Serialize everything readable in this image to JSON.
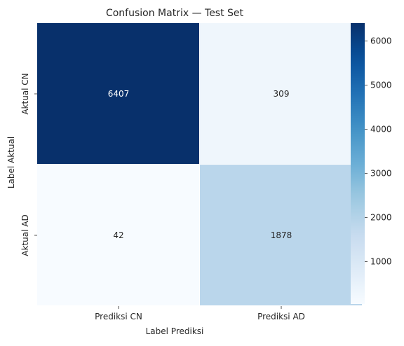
{
  "chart_data": {
    "type": "heatmap",
    "title": "Confusion Matrix — Test Set",
    "xlabel": "Label Prediksi",
    "ylabel": "Label Aktual",
    "x_categories": [
      "Prediksi CN",
      "Prediksi AD"
    ],
    "y_categories": [
      "Aktual CN",
      "Aktual AD"
    ],
    "values": [
      [
        6407,
        309
      ],
      [
        42,
        1878
      ]
    ],
    "colormap": "Blues",
    "colorbar": {
      "min": 42,
      "max": 6407,
      "ticks": [
        1000,
        2000,
        3000,
        4000,
        5000,
        6000
      ]
    },
    "annotations": true
  }
}
